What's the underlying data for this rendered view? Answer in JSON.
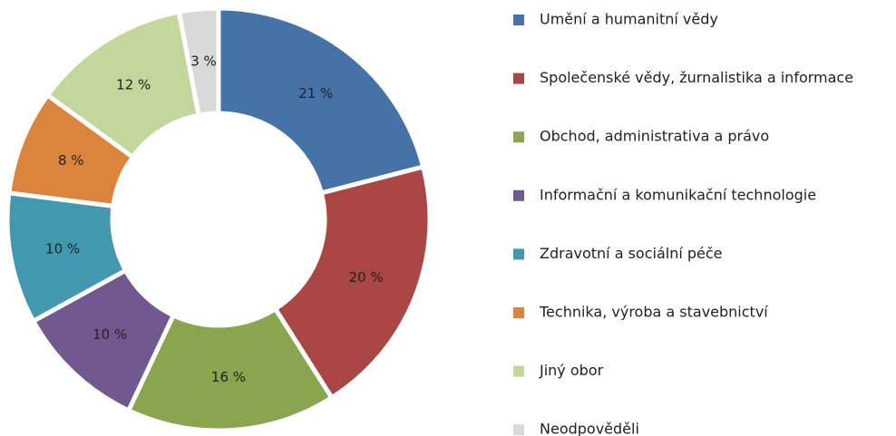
{
  "chart_data": {
    "type": "donut",
    "categories": [
      "Umění a humanitní vědy",
      "Společenské vědy, žurnalistika a informace",
      "Obchod, administrativa a právo",
      "Informační a komunikační technologie",
      "Zdravotní a sociální péče",
      "Technika, výroba a stavebnictví",
      "Jiný obor",
      "Neodpověděli"
    ],
    "values": [
      21,
      20,
      16,
      10,
      10,
      8,
      12,
      3
    ],
    "value_labels": [
      "21 %",
      "20 %",
      "16 %",
      "10 %",
      "10 %",
      "8 %",
      "12 %",
      "3 %"
    ],
    "colors": [
      "#4572a7",
      "#aa4643",
      "#89a54e",
      "#71588f",
      "#4198af",
      "#db843d",
      "#c3d69b",
      "#d9d9d9"
    ],
    "legend": "right"
  }
}
